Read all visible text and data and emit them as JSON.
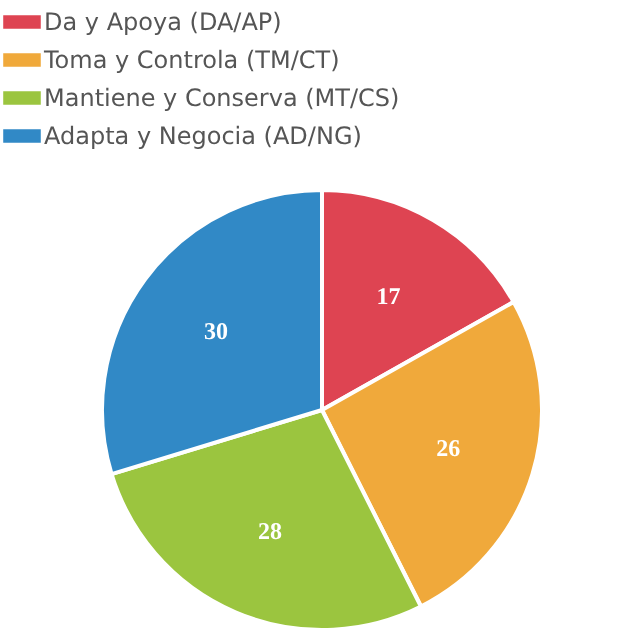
{
  "chart_data": {
    "type": "pie",
    "categories": [
      "Da y Apoya (DA/AP)",
      "Toma y Controla (TM/CT)",
      "Mantiene y Conserva (MT/CS)",
      "Adapta y Negocia (AD/NG)"
    ],
    "values": [
      17,
      26,
      28,
      30
    ],
    "colors": [
      "#de4452",
      "#f0a93b",
      "#9bc53f",
      "#3189c6"
    ],
    "data_labels": true,
    "legend": "top"
  }
}
